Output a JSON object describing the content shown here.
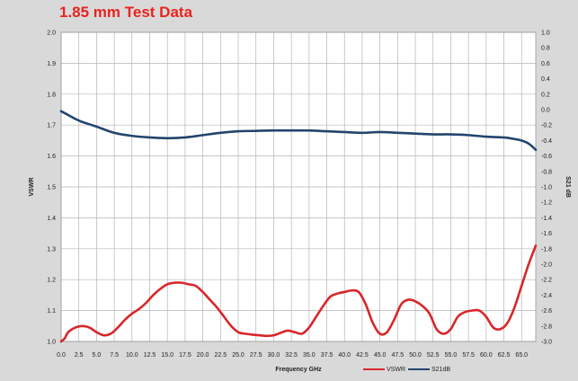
{
  "chart_data": {
    "type": "line",
    "title": "1.85 mm Test Data",
    "xlabel": "Frequency GHz",
    "ylabel": "VSWR",
    "y2label": "S21 dB",
    "xlim": [
      0,
      67
    ],
    "ylim": [
      1.0,
      2.0
    ],
    "y2lim": [
      -3.0,
      1.0
    ],
    "x_ticks": [
      "0.0",
      "2.5",
      "5.0",
      "7.5",
      "10.0",
      "12.5",
      "15.0",
      "17.5",
      "20.0",
      "22.5",
      "25.0",
      "27.5",
      "30.0",
      "32.5",
      "35.0",
      "37.5",
      "40.0",
      "42.5",
      "45.0",
      "47.5",
      "50.0",
      "52.5",
      "55.0",
      "57.5",
      "60.0",
      "62.5",
      "65.0"
    ],
    "y_ticks": [
      "1.0",
      "1.1",
      "1.2",
      "1.3",
      "1.4",
      "1.5",
      "1.6",
      "1.7",
      "1.8",
      "1.9",
      "2.0"
    ],
    "y2_ticks": [
      "-3.0",
      "-2.8",
      "-2.6",
      "-2.4",
      "-2.2",
      "-2.0",
      "-1.8",
      "-1.6",
      "-1.4",
      "-1.2",
      "-1.0",
      "-0.8",
      "-0.6",
      "-0.4",
      "-0.2",
      "0.0",
      "0.2",
      "0.4",
      "0.6",
      "0.8",
      "1.0"
    ],
    "grid": true,
    "legend_position": "bottom-right",
    "series": [
      {
        "name": "VSWR",
        "axis": "left",
        "color": "#d8262b",
        "x": [
          0,
          0.5,
          1,
          2,
          3,
          4,
          5,
          6,
          7,
          8,
          9,
          10,
          11,
          12,
          13,
          14,
          15,
          16,
          17,
          18,
          19,
          20,
          21,
          22,
          23,
          24,
          25,
          26,
          27,
          28,
          29,
          30,
          31,
          32,
          33,
          34,
          35,
          36,
          37,
          38,
          39,
          40,
          41,
          42,
          43,
          44,
          45,
          46,
          47,
          48,
          49,
          50,
          51,
          52,
          53,
          54,
          55,
          56,
          57,
          58,
          59,
          60,
          61,
          62,
          63,
          64,
          65,
          66,
          67
        ],
        "values": [
          1.0,
          1.01,
          1.03,
          1.045,
          1.05,
          1.045,
          1.03,
          1.02,
          1.025,
          1.045,
          1.07,
          1.09,
          1.105,
          1.125,
          1.15,
          1.17,
          1.185,
          1.19,
          1.19,
          1.185,
          1.18,
          1.16,
          1.135,
          1.11,
          1.08,
          1.05,
          1.03,
          1.025,
          1.022,
          1.02,
          1.018,
          1.02,
          1.028,
          1.035,
          1.03,
          1.025,
          1.045,
          1.08,
          1.115,
          1.145,
          1.155,
          1.16,
          1.165,
          1.16,
          1.12,
          1.06,
          1.025,
          1.03,
          1.07,
          1.12,
          1.135,
          1.13,
          1.115,
          1.09,
          1.04,
          1.025,
          1.04,
          1.08,
          1.095,
          1.1,
          1.1,
          1.08,
          1.045,
          1.04,
          1.06,
          1.11,
          1.18,
          1.25,
          1.31
        ]
      },
      {
        "name": "S21dB",
        "axis": "right",
        "color": "#21456e",
        "x": [
          0,
          1,
          2,
          3,
          5,
          7.5,
          10,
          12.5,
          15,
          17.5,
          20,
          22.5,
          25,
          27.5,
          30,
          32.5,
          35,
          37.5,
          40,
          42.5,
          45,
          47.5,
          50,
          52.5,
          55,
          57.5,
          60,
          62.5,
          64,
          65,
          66,
          67
        ],
        "values": [
          -0.02,
          -0.07,
          -0.12,
          -0.16,
          -0.22,
          -0.3,
          -0.34,
          -0.36,
          -0.37,
          -0.36,
          -0.33,
          -0.3,
          -0.28,
          -0.275,
          -0.27,
          -0.27,
          -0.27,
          -0.28,
          -0.29,
          -0.3,
          -0.29,
          -0.3,
          -0.31,
          -0.32,
          -0.32,
          -0.33,
          -0.35,
          -0.36,
          -0.38,
          -0.4,
          -0.44,
          -0.52
        ]
      }
    ]
  },
  "legend": {
    "items": [
      {
        "label": "VSWR",
        "color": "#d8262b"
      },
      {
        "label": "S21dB",
        "color": "#21456e"
      }
    ]
  }
}
